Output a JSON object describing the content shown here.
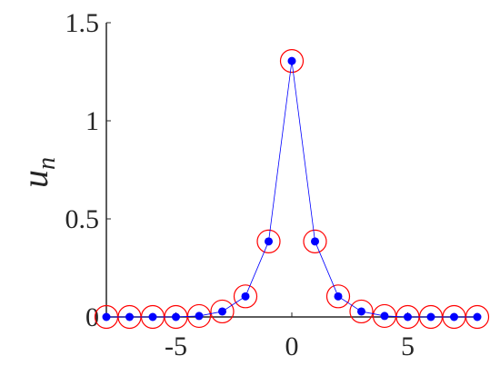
{
  "chart_data": {
    "type": "line",
    "ylabel": "u",
    "ylabel_sub": "n",
    "x": [
      -8,
      -7,
      -6,
      -5,
      -4,
      -3,
      -2,
      -1,
      0,
      1,
      2,
      3,
      4,
      5,
      6,
      7,
      8
    ],
    "series": [
      {
        "color": "#0000ff",
        "marker": "dot",
        "line": true,
        "values": [
          0,
          0,
          0,
          0,
          0.005,
          0.028,
          0.105,
          0.385,
          1.305,
          0.385,
          0.105,
          0.028,
          0.005,
          0,
          0,
          0,
          0
        ]
      },
      {
        "color": "#ff0000",
        "marker": "circle",
        "line": false,
        "values": [
          0,
          0,
          0,
          0,
          0.005,
          0.028,
          0.105,
          0.385,
          1.305,
          0.385,
          0.105,
          0.028,
          0.005,
          0,
          0,
          0,
          0
        ]
      }
    ],
    "xlim": [
      -8,
      8
    ],
    "ylim": [
      0,
      1.5
    ],
    "xticks": [
      -5,
      0,
      5
    ],
    "yticks": [
      0,
      0.5,
      1,
      1.5
    ]
  }
}
